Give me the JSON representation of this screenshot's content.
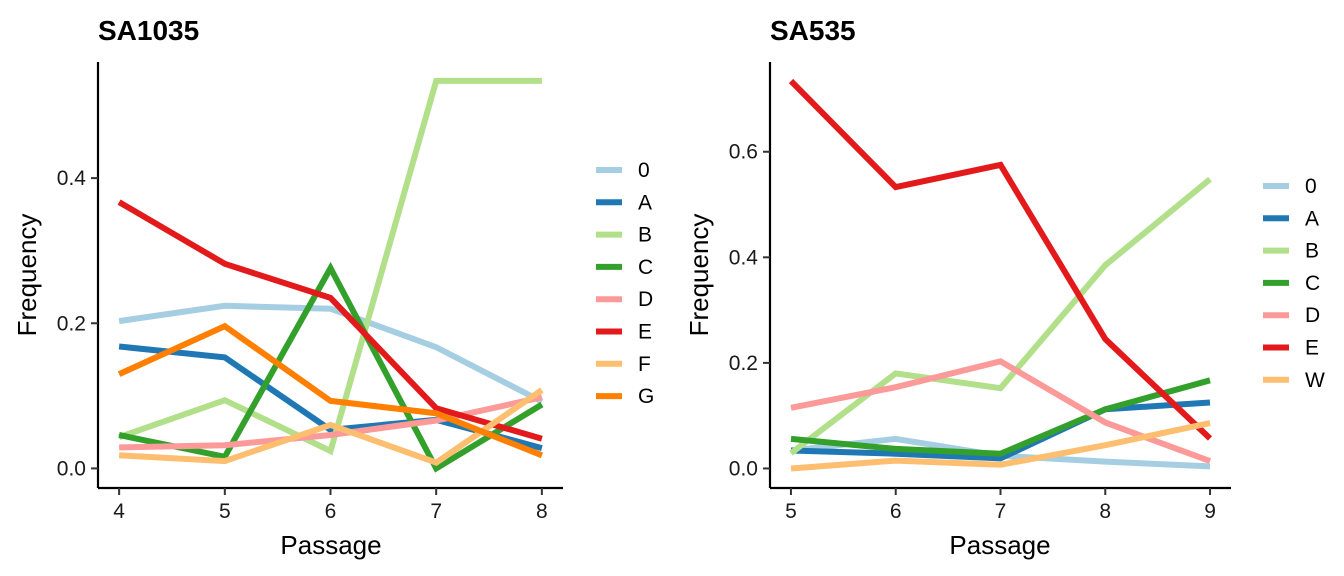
{
  "chart_data": [
    {
      "type": "line",
      "title": "SA1035",
      "xlabel": "Passage",
      "ylabel": "Frequency",
      "x": [
        4,
        5,
        6,
        7,
        8
      ],
      "xlim": [
        3.8,
        8.2
      ],
      "ylim": [
        -0.027,
        0.56
      ],
      "xticks": [
        "4",
        "5",
        "6",
        "7",
        "8"
      ],
      "yticks": [
        0.0,
        0.2,
        0.4
      ],
      "ytick_labels": [
        "0.0",
        "0.2",
        "0.4"
      ],
      "legend_position": "right",
      "grid": false,
      "series": [
        {
          "name": "0",
          "color": "#A6CEE3",
          "values": [
            0.203,
            0.224,
            0.22,
            0.167,
            0.092
          ]
        },
        {
          "name": "A",
          "color": "#1F78B4",
          "values": [
            0.168,
            0.153,
            0.053,
            0.067,
            0.028
          ]
        },
        {
          "name": "B",
          "color": "#B2DF8A",
          "values": [
            0.043,
            0.094,
            0.024,
            0.534,
            0.534
          ]
        },
        {
          "name": "C",
          "color": "#33A02C",
          "values": [
            0.046,
            0.016,
            0.276,
            0.0,
            0.088
          ]
        },
        {
          "name": "D",
          "color": "#FB9A99",
          "values": [
            0.029,
            0.032,
            0.046,
            0.066,
            0.098
          ]
        },
        {
          "name": "E",
          "color": "#E31A1C",
          "values": [
            0.367,
            0.282,
            0.235,
            0.083,
            0.041
          ]
        },
        {
          "name": "F",
          "color": "#FDBF6F",
          "values": [
            0.018,
            0.01,
            0.06,
            0.008,
            0.108
          ]
        },
        {
          "name": "G",
          "color": "#FF7F00",
          "values": [
            0.13,
            0.196,
            0.093,
            0.076,
            0.018
          ]
        }
      ]
    },
    {
      "type": "line",
      "title": "SA535",
      "xlabel": "Passage",
      "ylabel": "Frequency",
      "x": [
        5,
        6,
        7,
        8,
        9
      ],
      "xlim": [
        4.8,
        9.2
      ],
      "ylim": [
        -0.037,
        0.77
      ],
      "xticks": [
        "5",
        "6",
        "7",
        "8",
        "9"
      ],
      "yticks": [
        0.0,
        0.2,
        0.4,
        0.6
      ],
      "ytick_labels": [
        "0.0",
        "0.2",
        "0.4",
        "0.6"
      ],
      "legend_position": "right",
      "grid": false,
      "series": [
        {
          "name": "0",
          "color": "#A6CEE3",
          "values": [
            0.034,
            0.056,
            0.024,
            0.013,
            0.004
          ]
        },
        {
          "name": "A",
          "color": "#1F78B4",
          "values": [
            0.034,
            0.028,
            0.019,
            0.112,
            0.125
          ]
        },
        {
          "name": "B",
          "color": "#B2DF8A",
          "values": [
            0.029,
            0.18,
            0.152,
            0.385,
            0.548
          ]
        },
        {
          "name": "C",
          "color": "#33A02C",
          "values": [
            0.056,
            0.037,
            0.028,
            0.112,
            0.167
          ]
        },
        {
          "name": "D",
          "color": "#FB9A99",
          "values": [
            0.115,
            0.154,
            0.203,
            0.087,
            0.014
          ]
        },
        {
          "name": "E",
          "color": "#E31A1C",
          "values": [
            0.734,
            0.533,
            0.575,
            0.245,
            0.057
          ]
        },
        {
          "name": "W",
          "color": "#FDBF6F",
          "values": [
            0.0,
            0.015,
            0.007,
            0.044,
            0.086
          ]
        }
      ]
    }
  ]
}
